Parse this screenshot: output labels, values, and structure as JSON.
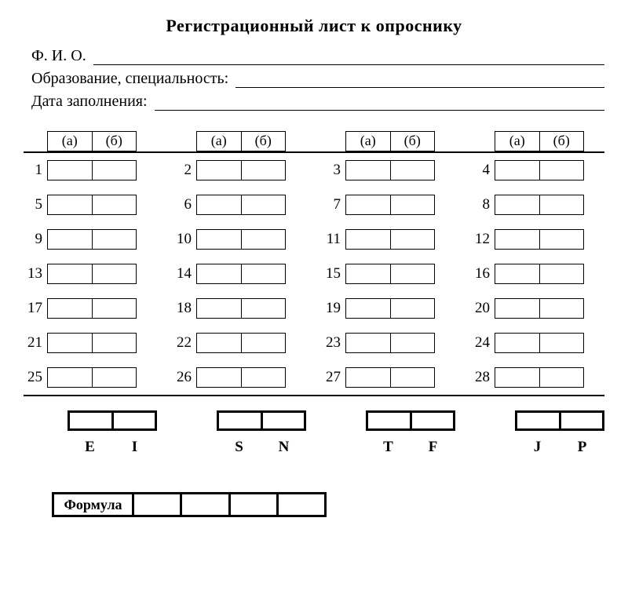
{
  "title": "Регистрационный лист к опроснику",
  "info": {
    "fio_label": "Ф. И. О. ",
    "edu_label": "Образование, специальность: ",
    "date_label": "Дата заполнения: "
  },
  "header": {
    "a": "(а)",
    "b": "(б)"
  },
  "rows": [
    [
      1,
      2,
      3,
      4
    ],
    [
      5,
      6,
      7,
      8
    ],
    [
      9,
      10,
      11,
      12
    ],
    [
      13,
      14,
      15,
      16
    ],
    [
      17,
      18,
      19,
      20
    ],
    [
      21,
      22,
      23,
      24
    ],
    [
      25,
      26,
      27,
      28
    ]
  ],
  "letters": [
    [
      "E",
      "I"
    ],
    [
      "S",
      "N"
    ],
    [
      "T",
      "F"
    ],
    [
      "J",
      "P"
    ]
  ],
  "formula_label": "Формула",
  "colors": {
    "bg": "#ffffff",
    "fg": "#000000"
  }
}
